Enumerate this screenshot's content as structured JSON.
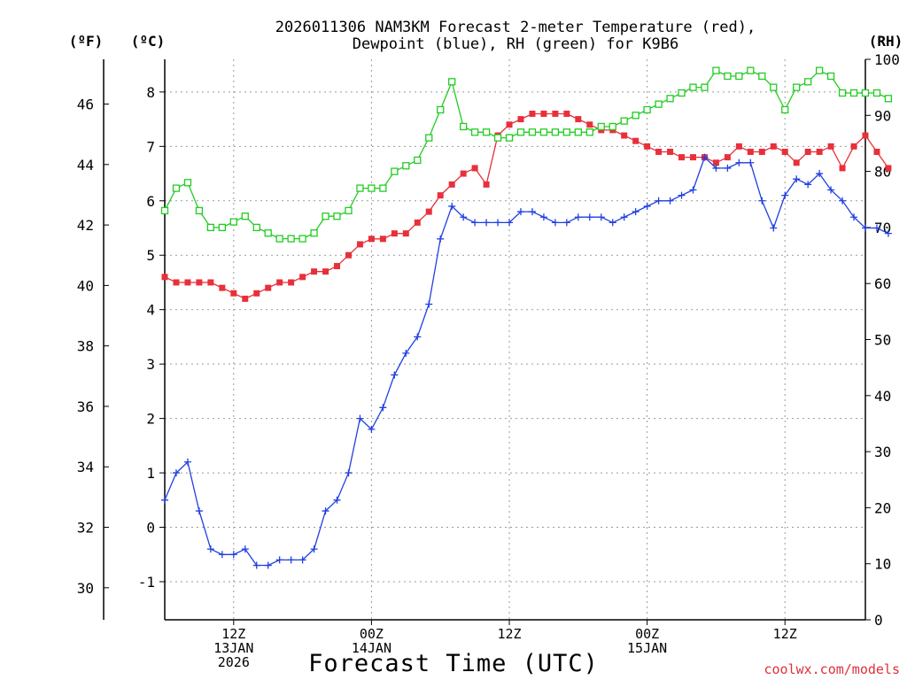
{
  "chart_data": {
    "type": "line",
    "title_lines": [
      "2026011306 NAM3KM Forecast 2-meter Temperature (red),",
      "Dewpoint (blue), RH (green) for K9B6"
    ],
    "xlabel": "Forecast Time (UTC)",
    "credit": "coolwx.com/models",
    "x_range_hours": [
      0,
      61
    ],
    "x_ticks": [
      {
        "hour": 6,
        "lines": [
          "12Z",
          "13JAN",
          "2026"
        ]
      },
      {
        "hour": 18,
        "lines": [
          "00Z",
          "14JAN"
        ]
      },
      {
        "hour": 30,
        "lines": [
          "12Z"
        ]
      },
      {
        "hour": 42,
        "lines": [
          "00Z",
          "15JAN"
        ]
      },
      {
        "hour": 54,
        "lines": [
          "12Z"
        ]
      }
    ],
    "axes": {
      "celsius": {
        "unit_label": "(ºC)",
        "range": [
          -1.7,
          8.6
        ],
        "ticks": [
          -1,
          0,
          1,
          2,
          3,
          4,
          5,
          6,
          7,
          8
        ]
      },
      "fahrenheit": {
        "unit_label": "(ºF)",
        "ticks": [
          30,
          32,
          34,
          36,
          38,
          40,
          42,
          44,
          46
        ]
      },
      "rh": {
        "unit_label": "(RH)",
        "range": [
          0,
          100
        ],
        "ticks": [
          0,
          10,
          20,
          30,
          40,
          50,
          60,
          70,
          80,
          90,
          100
        ]
      }
    },
    "series": [
      {
        "name": "Temperature",
        "unit": "C",
        "axis": "celsius",
        "color": "#e8303a",
        "marker": "filled-square",
        "values": [
          4.6,
          4.5,
          4.5,
          4.5,
          4.5,
          4.4,
          4.3,
          4.2,
          4.3,
          4.4,
          4.5,
          4.5,
          4.6,
          4.7,
          4.7,
          4.8,
          5.0,
          5.2,
          5.3,
          5.3,
          5.4,
          5.4,
          5.6,
          5.8,
          6.1,
          6.3,
          6.5,
          6.6,
          6.3,
          7.2,
          7.4,
          7.5,
          7.6,
          7.6,
          7.6,
          7.6,
          7.5,
          7.4,
          7.3,
          7.3,
          7.2,
          7.1,
          7.0,
          6.9,
          6.9,
          6.8,
          6.8,
          6.8,
          6.7,
          6.8,
          7.0,
          6.9,
          6.9,
          7.0,
          6.9,
          6.7,
          6.9,
          6.9,
          7.0,
          6.6,
          7.0,
          7.2,
          6.9,
          6.6
        ]
      },
      {
        "name": "Dewpoint",
        "unit": "C",
        "axis": "celsius",
        "color": "#2040e0",
        "marker": "plus",
        "values": [
          0.5,
          1.0,
          1.2,
          0.3,
          -0.4,
          -0.5,
          -0.5,
          -0.4,
          -0.7,
          -0.7,
          -0.6,
          -0.6,
          -0.6,
          -0.4,
          0.3,
          0.5,
          1.0,
          2.0,
          1.8,
          2.2,
          2.8,
          3.2,
          3.5,
          4.1,
          5.3,
          5.9,
          5.7,
          5.6,
          5.6,
          5.6,
          5.6,
          5.8,
          5.8,
          5.7,
          5.6,
          5.6,
          5.7,
          5.7,
          5.7,
          5.6,
          5.7,
          5.8,
          5.9,
          6.0,
          6.0,
          6.1,
          6.2,
          6.8,
          6.6,
          6.6,
          6.7,
          6.7,
          6.0,
          5.5,
          6.1,
          6.4,
          6.3,
          6.5,
          6.2,
          6.0,
          5.7,
          5.5,
          5.5,
          5.4
        ]
      },
      {
        "name": "RH",
        "unit": "%",
        "axis": "rh",
        "color": "#22cc22",
        "marker": "open-square",
        "values": [
          73,
          77,
          78,
          73,
          70,
          70,
          71,
          72,
          70,
          69,
          68,
          68,
          68,
          69,
          72,
          72,
          73,
          77,
          77,
          77,
          80,
          81,
          82,
          86,
          91,
          96,
          88,
          87,
          87,
          86,
          86,
          87,
          87,
          87,
          87,
          87,
          87,
          87,
          88,
          88,
          89,
          90,
          91,
          92,
          93,
          94,
          95,
          95,
          98,
          97,
          97,
          98,
          97,
          95,
          91,
          95,
          96,
          98,
          97,
          94,
          94,
          94,
          94,
          93
        ]
      }
    ]
  }
}
